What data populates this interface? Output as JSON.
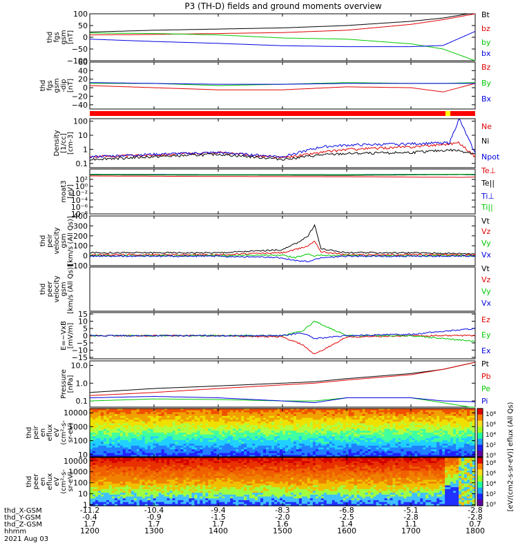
{
  "title": "P3 (TH-D) fields and ground moments overview",
  "panels": [
    {
      "id": "fgs_gsm",
      "ylabel": [
        "thd",
        "fgs",
        "gsm",
        "[nT]"
      ],
      "scale": "linear",
      "ylim": [
        -100,
        100
      ],
      "ticks": [
        "100",
        "50",
        "0",
        "−50",
        "−100"
      ],
      "legend": [
        {
          "name": "Bt",
          "color": "#000000"
        },
        {
          "name": "bz",
          "color": "#e00000"
        },
        {
          "name": "by",
          "color": "#00c800"
        },
        {
          "name": "bx",
          "color": "#0000e0"
        }
      ]
    },
    {
      "id": "fgs_gsm_dt",
      "ylabel": [
        "thd",
        "fgs",
        "gsm",
        "-dip",
        "[nT]"
      ],
      "scale": "linear",
      "ylim": [
        -50,
        60
      ],
      "ticks": [
        "60",
        "40",
        "20",
        "0",
        "−20",
        "−40"
      ],
      "legend": [
        {
          "name": "Bz",
          "color": "#e00000"
        },
        {
          "name": "By",
          "color": "#00c800"
        },
        {
          "name": "Bx",
          "color": "#0000e0"
        }
      ]
    },
    {
      "id": "density",
      "ylabel": [
        "Density",
        "[1/cc]",
        "[cm-3]"
      ],
      "scale": "log",
      "ylim": [
        0.05,
        150
      ],
      "ticks": [
        "100",
        "10",
        "1",
        "0.1"
      ],
      "legend": [
        {
          "name": "Ne",
          "color": "#e00000"
        },
        {
          "name": "Ni",
          "color": "#000000"
        },
        {
          "name": "Npot",
          "color": "#0000e0"
        }
      ]
    },
    {
      "id": "temperature",
      "ylabel": [
        "moat3",
        "[eV]"
      ],
      "scale": "log",
      "ylim": [
        1e-08,
        100000.0
      ],
      "ticks": [
        "10²",
        "10⁰",
        "10⁻²",
        "10⁻⁴",
        "10⁻⁶",
        "10⁻⁸"
      ],
      "legend": [
        {
          "name": "Te⊥",
          "color": "#e00000"
        },
        {
          "name": "Te||",
          "color": "#000000"
        },
        {
          "name": "Ti⊥",
          "color": "#0000e0"
        },
        {
          "name": "Ti||",
          "color": "#00c800"
        }
      ]
    },
    {
      "id": "peir_velocity",
      "ylabel": [
        "thd",
        "peir",
        "velocity",
        "gsm",
        "[km/s (All Qs)]"
      ],
      "scale": "linear",
      "ylim": [
        -100,
        400
      ],
      "ticks": [
        "400",
        "300",
        "200",
        "100",
        "0",
        "−100"
      ],
      "legend": [
        {
          "name": "Vt",
          "color": "#000000"
        },
        {
          "name": "Vz",
          "color": "#e00000"
        },
        {
          "name": "Vy",
          "color": "#00c800"
        },
        {
          "name": "Vx",
          "color": "#0000e0"
        }
      ]
    },
    {
      "id": "peer_velocity",
      "ylabel": [
        "thd",
        "peer",
        "velocity",
        "gsm",
        "[km/s (All Qs)]"
      ],
      "scale": "linear",
      "ylim": [
        -100,
        400
      ],
      "ticks": [],
      "legend": [
        {
          "name": "Vt",
          "color": "#000000"
        },
        {
          "name": "Vz",
          "color": "#e00000"
        },
        {
          "name": "Vy",
          "color": "#00c800"
        },
        {
          "name": "Vx",
          "color": "#0000e0"
        }
      ]
    },
    {
      "id": "efield",
      "ylabel": [
        "E=−VxB",
        "[mV/m]"
      ],
      "scale": "linear",
      "ylim": [
        -16,
        16
      ],
      "ticks": [
        "15",
        "10",
        "5",
        "0",
        "−5",
        "−10",
        "−15"
      ],
      "legend": [
        {
          "name": "Ez",
          "color": "#e00000"
        },
        {
          "name": "Ey",
          "color": "#00c800"
        },
        {
          "name": "Ex",
          "color": "#0000e0"
        }
      ]
    },
    {
      "id": "pressure",
      "ylabel": [
        "Pressure",
        "[nPa]"
      ],
      "scale": "log",
      "ylim": [
        0.045,
        18
      ],
      "ticks": [
        "10.0",
        "1.0",
        "0.1"
      ],
      "legend": [
        {
          "name": "Pt",
          "color": "#000000"
        },
        {
          "name": "Pb",
          "color": "#e00000"
        },
        {
          "name": "Pe",
          "color": "#00c800"
        },
        {
          "name": "Pi",
          "color": "#0000e0"
        }
      ]
    },
    {
      "id": "peir_en_eflux",
      "ylabel": [
        "thd",
        "peir",
        "en",
        "eflux",
        "eV",
        "(cm²-s-",
        "sr-eV)"
      ],
      "scale": "log",
      "ylim": [
        7,
        20000
      ],
      "ticks": [
        "10000",
        "1000",
        "100",
        "10"
      ],
      "legend": []
    },
    {
      "id": "peer_en_eflux",
      "ylabel": [
        "thd",
        "peer",
        "en",
        "eflux",
        "eV",
        "(cm²-s-",
        "sr-eV)"
      ],
      "scale": "log",
      "ylim": [
        0.8,
        20000
      ],
      "ticks": [
        "10000",
        "1000",
        "100",
        "10",
        "1"
      ],
      "legend": []
    }
  ],
  "colorbars": [
    {
      "ticks": [
        "10⁸",
        "10⁶",
        "10⁴",
        "10²",
        "10⁰"
      ]
    },
    {
      "ticks": [
        "10⁸",
        "10⁶",
        "10⁴",
        "10²",
        "10⁰"
      ]
    }
  ],
  "colorbar_label": "[eV/(cm2-s-sr-eV)] eflux (All Qs)",
  "xaxis": {
    "row_labels": [
      "thd_X-GSM",
      "thd_Y-GSM",
      "thd_Z-GSM",
      "hhmm",
      "2021 Aug 03"
    ],
    "columns": [
      {
        "x": "-11.2",
        "y": "-0.4",
        "z": "1.7",
        "hhmm": "1200"
      },
      {
        "x": "-10.4",
        "y": "-0.9",
        "z": "1.7",
        "hhmm": "1300"
      },
      {
        "x": "-9.4",
        "y": "-1.5",
        "z": "1.7",
        "hhmm": "1400"
      },
      {
        "x": "-8.3",
        "y": "-2.0",
        "z": "1.6",
        "hhmm": "1500"
      },
      {
        "x": "-6.8",
        "y": "-2.5",
        "z": "1.4",
        "hhmm": "1600"
      },
      {
        "x": "-5.1",
        "y": "-2.8",
        "z": "1.1",
        "hhmm": "1700"
      },
      {
        "x": "-2.8",
        "y": "-2.8",
        "z": "0.7",
        "hhmm": "1800"
      }
    ]
  },
  "chart_data": [
    {
      "type": "line",
      "panel": "fgs_gsm",
      "x": [
        12.0,
        13.0,
        14.0,
        15.0,
        16.0,
        17.0,
        17.5,
        18.0
      ],
      "series": [
        {
          "name": "Bt",
          "values": [
            22,
            30,
            35,
            40,
            50,
            68,
            82,
            105
          ]
        },
        {
          "name": "bz",
          "values": [
            10,
            12,
            16,
            20,
            30,
            55,
            75,
            100
          ]
        },
        {
          "name": "by",
          "values": [
            18,
            16,
            10,
            -3,
            -8,
            -28,
            -50,
            -100
          ]
        },
        {
          "name": "bx",
          "values": [
            -8,
            -18,
            -26,
            -36,
            -40,
            -40,
            -35,
            25
          ]
        }
      ]
    },
    {
      "type": "line",
      "panel": "fgs_gsm_dt",
      "x": [
        12.0,
        13.0,
        14.0,
        15.0,
        16.0,
        17.0,
        17.5,
        18.0
      ],
      "series": [
        {
          "name": "Bz",
          "values": [
            5,
            0,
            -5,
            -5,
            2,
            0,
            -10,
            10
          ]
        },
        {
          "name": "By",
          "values": [
            10,
            10,
            5,
            8,
            12,
            10,
            10,
            12
          ]
        },
        {
          "name": "Bx",
          "values": [
            12,
            10,
            8,
            8,
            10,
            10,
            10,
            10
          ]
        }
      ]
    },
    {
      "type": "line",
      "panel": "density",
      "x": [
        12.0,
        13.0,
        14.0,
        15.0,
        15.6,
        16.0,
        17.0,
        17.6,
        17.75,
        18.0
      ],
      "series": [
        {
          "name": "Ne",
          "values": [
            0.3,
            0.4,
            0.6,
            0.25,
            0.6,
            1.0,
            1.5,
            2.5,
            3.0,
            0.3
          ]
        },
        {
          "name": "Ni",
          "values": [
            0.2,
            0.3,
            0.45,
            0.2,
            0.4,
            0.5,
            0.6,
            0.9,
            0.8,
            0.5
          ]
        },
        {
          "name": "Npot",
          "values": [
            0.3,
            0.45,
            0.6,
            0.3,
            1.5,
            2.0,
            2.5,
            3.0,
            150,
            0.5
          ]
        }
      ]
    },
    {
      "type": "line",
      "panel": "temperature",
      "x": [
        12.0,
        14.0,
        16.0,
        17.8,
        18.0
      ],
      "series": [
        {
          "name": "Te⊥",
          "values": [
            1000,
            700,
            600,
            400,
            500
          ]
        },
        {
          "name": "Te||",
          "values": [
            2000,
            1800,
            1500,
            2500,
            2000
          ]
        },
        {
          "name": "Ti⊥",
          "values": [
            3000,
            2500,
            2500,
            3000,
            3000
          ]
        },
        {
          "name": "Ti||",
          "values": [
            2500,
            2200,
            2200,
            2800,
            2800
          ]
        }
      ]
    },
    {
      "type": "line",
      "panel": "peir_velocity",
      "x": [
        12.0,
        13.0,
        14.0,
        15.0,
        15.2,
        15.4,
        15.5,
        15.6,
        16.0,
        17.0,
        18.0
      ],
      "series": [
        {
          "name": "Vt",
          "values": [
            30,
            30,
            30,
            60,
            120,
            200,
            310,
            70,
            30,
            30,
            20
          ]
        },
        {
          "name": "Vz",
          "values": [
            10,
            10,
            10,
            30,
            60,
            100,
            150,
            40,
            10,
            10,
            10
          ]
        },
        {
          "name": "Vy",
          "values": [
            0,
            0,
            0,
            5,
            -20,
            20,
            0,
            5,
            0,
            0,
            0
          ]
        },
        {
          "name": "Vx",
          "values": [
            -5,
            -5,
            -5,
            -20,
            -50,
            -60,
            -40,
            -20,
            -5,
            -5,
            -5
          ]
        }
      ]
    },
    {
      "type": "line",
      "panel": "efield",
      "x": [
        12.0,
        13.0,
        14.0,
        15.0,
        15.3,
        15.5,
        16.0,
        17.0,
        17.5,
        18.0
      ],
      "series": [
        {
          "name": "Ez",
          "values": [
            0,
            0,
            0,
            -1,
            -6,
            -13,
            -1,
            0,
            0,
            0
          ]
        },
        {
          "name": "Ey",
          "values": [
            0,
            0,
            0,
            0,
            3,
            10,
            0,
            0,
            -2,
            -4
          ]
        },
        {
          "name": "Ex",
          "values": [
            0,
            0,
            0,
            0,
            2,
            -2,
            0,
            1,
            3,
            5
          ]
        }
      ]
    },
    {
      "type": "line",
      "panel": "pressure",
      "x": [
        12.0,
        13.0,
        14.0,
        15.0,
        15.5,
        16.0,
        17.0,
        17.5,
        18.0
      ],
      "series": [
        {
          "name": "Pt",
          "values": [
            0.3,
            0.5,
            0.7,
            1.0,
            1.2,
            1.8,
            3.5,
            6.0,
            15
          ]
        },
        {
          "name": "Pb",
          "values": [
            0.2,
            0.3,
            0.5,
            0.8,
            1.0,
            1.5,
            3.0,
            6.0,
            15
          ]
        },
        {
          "name": "Pe",
          "values": [
            0.1,
            0.13,
            0.12,
            0.1,
            0.1,
            0.15,
            0.15,
            0.08,
            0.04
          ]
        },
        {
          "name": "Pi",
          "values": [
            0.15,
            0.18,
            0.15,
            0.1,
            0.08,
            0.15,
            0.15,
            0.1,
            0.09
          ]
        }
      ]
    }
  ]
}
